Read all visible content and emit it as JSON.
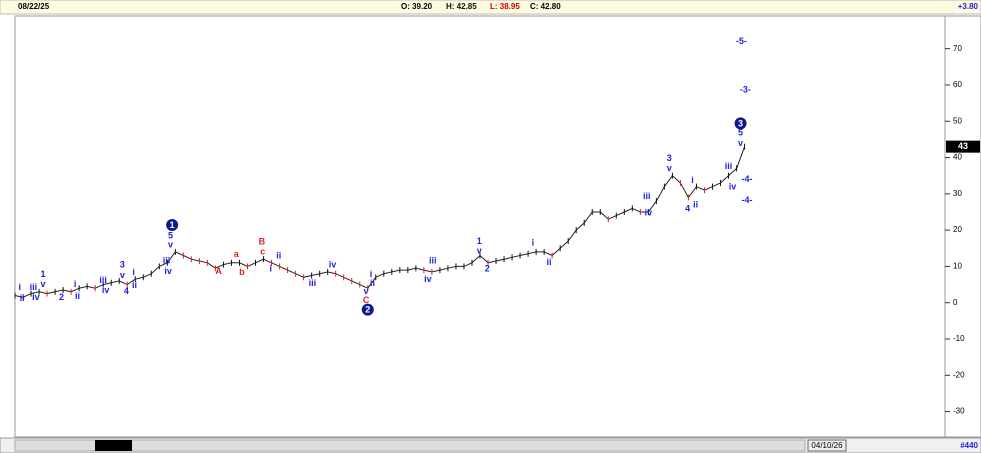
{
  "header": {
    "date": "08/22/25",
    "open": "O: 39.20",
    "high": "H: 42.85",
    "low": "L: 38.95",
    "close": "C: 42.80",
    "change": "+3.80"
  },
  "footer": {
    "date": "04/10/26",
    "count": "#440"
  },
  "chart_data": {
    "type": "line",
    "xlim": [
      0,
      116
    ],
    "ylim": [
      -37,
      79
    ],
    "yticks": [
      70,
      60,
      50,
      40,
      30,
      20,
      10,
      0,
      -10,
      -20,
      -30
    ],
    "price_label": 43,
    "series": [
      {
        "color": "#222222",
        "x": [
          0,
          1,
          2,
          3,
          4,
          5,
          6,
          7,
          8,
          9,
          10,
          11,
          12,
          13,
          14,
          15,
          16,
          17,
          18,
          19,
          20,
          21,
          22,
          23,
          24,
          25,
          26,
          27,
          28,
          29,
          30,
          31,
          32,
          33,
          34,
          35,
          36,
          37,
          38,
          39,
          40,
          41,
          42,
          43,
          44,
          45,
          46,
          47,
          48,
          49,
          50,
          51,
          52,
          53,
          54,
          55,
          56,
          57,
          58,
          59,
          60,
          61,
          62,
          63,
          64,
          65,
          66,
          67,
          68,
          69,
          70,
          71,
          72,
          73,
          74,
          75,
          76,
          77,
          78,
          79,
          80,
          81,
          82,
          83,
          84,
          85,
          86,
          87,
          88,
          89,
          90,
          91
        ],
        "values": [
          2,
          1.5,
          2.5,
          3,
          2.5,
          3,
          3.5,
          3,
          4,
          4.5,
          4,
          5,
          5.5,
          6,
          5,
          6.5,
          7,
          8,
          10,
          11,
          14,
          13,
          12,
          11.5,
          11,
          9.5,
          10.5,
          11,
          11,
          10,
          11,
          12,
          11,
          10,
          9,
          8,
          7,
          7.5,
          8,
          8.5,
          8,
          7,
          6,
          5,
          4,
          7,
          8,
          8.5,
          9,
          9,
          9.5,
          9,
          8.5,
          9,
          9.5,
          10,
          10,
          11,
          13,
          11,
          11.5,
          12,
          12.5,
          13,
          13.5,
          14,
          14,
          13,
          15,
          17,
          20,
          22,
          25,
          25,
          23,
          24,
          25,
          26,
          25,
          25,
          28,
          32,
          35,
          33,
          29,
          32,
          31,
          32,
          33,
          35,
          37,
          43
        ]
      }
    ],
    "annotations": [
      {
        "text": "1",
        "x": 19.6,
        "y": 21.4,
        "color": "#0a1a8c",
        "circle": true
      },
      {
        "text": "2",
        "x": 44,
        "y": -1.9,
        "color": "#0a1a8c",
        "circle": true
      },
      {
        "text": "3",
        "x": 90.5,
        "y": 49.4,
        "color": "#0a1a8c",
        "circle": true
      },
      {
        "text": "5",
        "x": 19.4,
        "y": 18.3,
        "color": "#2020e0"
      },
      {
        "text": "v",
        "x": 19.4,
        "y": 15.8,
        "color": "#2020e0"
      },
      {
        "text": "iii",
        "x": 18.9,
        "y": 11.4,
        "color": "#2020e0"
      },
      {
        "text": "iv",
        "x": 19.1,
        "y": 8.6,
        "color": "#2020e0"
      },
      {
        "text": "i",
        "x": 0.6,
        "y": 4.2,
        "color": "#2020e0"
      },
      {
        "text": "ii",
        "x": 0.9,
        "y": 1.1,
        "color": "#2020e0"
      },
      {
        "text": "iii",
        "x": 2.3,
        "y": 4.2,
        "color": "#2020e0"
      },
      {
        "text": "iv",
        "x": 2.6,
        "y": 1.4,
        "color": "#2020e0"
      },
      {
        "text": "1",
        "x": 3.5,
        "y": 7.8,
        "color": "#2020e0"
      },
      {
        "text": "v",
        "x": 3.5,
        "y": 5,
        "color": "#2020e0"
      },
      {
        "text": "2",
        "x": 5.8,
        "y": 1.4,
        "color": "#2020e0"
      },
      {
        "text": "i",
        "x": 7.5,
        "y": 5,
        "color": "#2020e0"
      },
      {
        "text": "ii",
        "x": 7.8,
        "y": 1.7,
        "color": "#2020e0"
      },
      {
        "text": "iii",
        "x": 11,
        "y": 6.1,
        "color": "#2020e0"
      },
      {
        "text": "iv",
        "x": 11.3,
        "y": 3.3,
        "color": "#2020e0"
      },
      {
        "text": "3",
        "x": 13.4,
        "y": 10.3,
        "color": "#2020e0"
      },
      {
        "text": "v",
        "x": 13.4,
        "y": 7.5,
        "color": "#2020e0"
      },
      {
        "text": "4",
        "x": 13.9,
        "y": 3.1,
        "color": "#2020e0"
      },
      {
        "text": "i",
        "x": 14.8,
        "y": 8.3,
        "color": "#2020e0"
      },
      {
        "text": "ii",
        "x": 14.9,
        "y": 4.7,
        "color": "#2020e0"
      },
      {
        "text": "A",
        "x": 25.4,
        "y": 8.6,
        "color": "#e02020"
      },
      {
        "text": "a",
        "x": 27.6,
        "y": 13.3,
        "color": "#e02020"
      },
      {
        "text": "b",
        "x": 28.3,
        "y": 8.3,
        "color": "#e02020"
      },
      {
        "text": "B",
        "x": 30.8,
        "y": 16.7,
        "color": "#e02020"
      },
      {
        "text": "c",
        "x": 30.9,
        "y": 13.9,
        "color": "#e02020"
      },
      {
        "text": "i",
        "x": 31.9,
        "y": 9.2,
        "color": "#2020e0"
      },
      {
        "text": "ii",
        "x": 32.9,
        "y": 12.8,
        "color": "#2020e0"
      },
      {
        "text": "iii",
        "x": 37.1,
        "y": 5.3,
        "color": "#2020e0"
      },
      {
        "text": "iv",
        "x": 39.6,
        "y": 10.3,
        "color": "#2020e0"
      },
      {
        "text": "i",
        "x": 44.4,
        "y": 7.8,
        "color": "#2020e0"
      },
      {
        "text": "ii",
        "x": 44.6,
        "y": 5.3,
        "color": "#2020e0"
      },
      {
        "text": "v",
        "x": 43.8,
        "y": 3.1,
        "color": "#2020e0"
      },
      {
        "text": "C",
        "x": 43.8,
        "y": 0.6,
        "color": "#e02020"
      },
      {
        "text": "iii",
        "x": 52.1,
        "y": 11.4,
        "color": "#2020e0"
      },
      {
        "text": "iv",
        "x": 51.5,
        "y": 6.4,
        "color": "#2020e0"
      },
      {
        "text": "1",
        "x": 57.9,
        "y": 16.9,
        "color": "#2020e0"
      },
      {
        "text": "v",
        "x": 57.9,
        "y": 14.2,
        "color": "#2020e0"
      },
      {
        "text": "2",
        "x": 58.9,
        "y": 9.2,
        "color": "#2020e0"
      },
      {
        "text": "i",
        "x": 64.6,
        "y": 16.4,
        "color": "#2020e0"
      },
      {
        "text": "ii",
        "x": 66.6,
        "y": 11.1,
        "color": "#2020e0"
      },
      {
        "text": "iii",
        "x": 78.8,
        "y": 29.2,
        "color": "#2020e0"
      },
      {
        "text": "iv",
        "x": 79,
        "y": 24.7,
        "color": "#2020e0"
      },
      {
        "text": "3",
        "x": 81.6,
        "y": 39.7,
        "color": "#2020e0"
      },
      {
        "text": "v",
        "x": 81.6,
        "y": 36.9,
        "color": "#2020e0"
      },
      {
        "text": "4",
        "x": 83.9,
        "y": 25.8,
        "color": "#2020e0"
      },
      {
        "text": "i",
        "x": 84.5,
        "y": 33.6,
        "color": "#2020e0"
      },
      {
        "text": "ii",
        "x": 84.9,
        "y": 26.9,
        "color": "#2020e0"
      },
      {
        "text": "iii",
        "x": 89,
        "y": 37.5,
        "color": "#2020e0"
      },
      {
        "text": "iv",
        "x": 89.5,
        "y": 31.9,
        "color": "#2020e0"
      },
      {
        "text": "5",
        "x": 90.5,
        "y": 46.7,
        "color": "#2020e0"
      },
      {
        "text": "v",
        "x": 90.5,
        "y": 43.9,
        "color": "#2020e0"
      },
      {
        "text": "-5-",
        "x": 90.6,
        "y": 71.9,
        "color": "#2020e0"
      },
      {
        "text": "-3-",
        "x": 91.1,
        "y": 58.6,
        "color": "#2020e0"
      },
      {
        "text": "-4-",
        "x": 91.3,
        "y": 33.9,
        "color": "#2020e0"
      },
      {
        "text": "-4-",
        "x": 91.3,
        "y": 28.1,
        "color": "#2020e0"
      }
    ]
  }
}
